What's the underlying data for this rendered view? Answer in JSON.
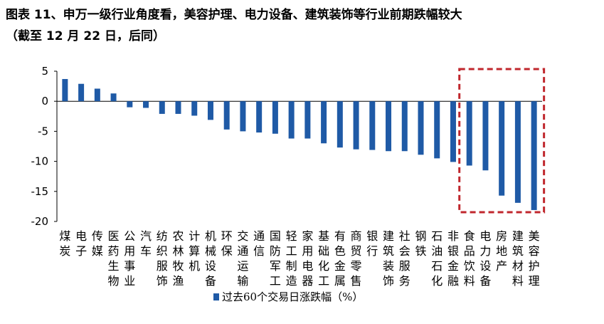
{
  "header": {
    "title_line1": "图表 11、申万一级行业角度看，美容护理、电力设备、建筑装饰等行业前期跌幅较大",
    "title_line2": "（截至 12 月 22 日，后同）"
  },
  "chart_data": {
    "type": "bar",
    "title": "图表 11、申万一级行业角度看，美容护理、电力设备、建筑装饰等行业前期跌幅较大（截至 12 月 22 日，后同）",
    "xlabel": "",
    "ylabel": "",
    "ylim": [
      -20,
      5
    ],
    "yticks": [
      5,
      0,
      -5,
      -10,
      -15,
      -20
    ],
    "grid": false,
    "legend_position": "bottom-left",
    "categories": [
      "煤炭",
      "电子",
      "传媒",
      "医药生物",
      "公用事业",
      "汽车",
      "纺织服饰",
      "农林牧渔",
      "计算机",
      "机械设备",
      "环保",
      "交通运输",
      "通信",
      "国防军工",
      "轻工制造",
      "家用电器",
      "基础化工",
      "有色金属",
      "商贸零售",
      "银行",
      "建筑装饰",
      "社会服务",
      "钢铁",
      "石油石化",
      "非银金融",
      "食品饮料",
      "电力设备",
      "房地产",
      "建筑材料",
      "美容护理"
    ],
    "series": [
      {
        "name": "过去60个交易日涨跌幅（%）",
        "color": "#1f5aa6",
        "values": [
          3.7,
          2.9,
          2.1,
          1.3,
          -1.0,
          -1.1,
          -2.1,
          -2.1,
          -2.4,
          -3.1,
          -4.7,
          -5.0,
          -5.2,
          -5.4,
          -6.2,
          -6.2,
          -7.0,
          -7.7,
          -8.0,
          -8.1,
          -8.3,
          -8.3,
          -8.9,
          -9.5,
          -10.1,
          -10.7,
          -11.5,
          -15.7,
          -16.9,
          -18.1
        ]
      }
    ],
    "highlight": {
      "categories": [
        "食品饮料",
        "电力设备",
        "房地产",
        "建筑材料",
        "美容护理"
      ],
      "style": "dashed-red-box",
      "color": "#c0272d"
    }
  }
}
